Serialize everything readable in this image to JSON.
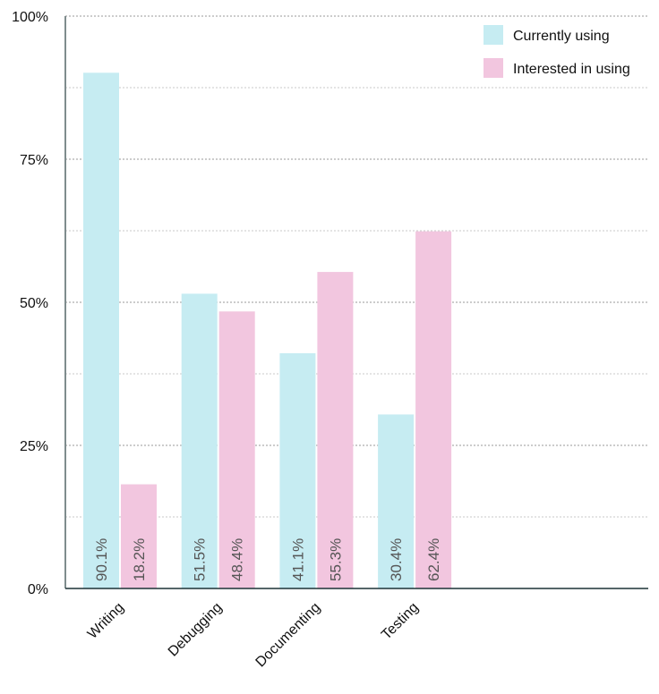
{
  "chart_data": {
    "type": "bar",
    "title": "",
    "xlabel": "",
    "ylabel": "",
    "ylim": [
      0,
      100
    ],
    "y_ticks": [
      "0%",
      "25%",
      "50%",
      "75%",
      "100%"
    ],
    "grid": true,
    "legend_position": "top-right",
    "categories": [
      "Writing",
      "Debugging",
      "Documenting",
      "Testing"
    ],
    "series": [
      {
        "name": "Currently using",
        "color": "#c6ecf2",
        "values": [
          90.1,
          51.5,
          41.1,
          30.4
        ],
        "labels": [
          "90.1%",
          "51.5%",
          "41.1%",
          "30.4%"
        ]
      },
      {
        "name": "Interested in using",
        "color": "#f2c6df",
        "values": [
          18.2,
          48.4,
          55.3,
          62.4
        ],
        "labels": [
          "18.2%",
          "48.4%",
          "55.3%",
          "62.4%"
        ]
      }
    ]
  }
}
